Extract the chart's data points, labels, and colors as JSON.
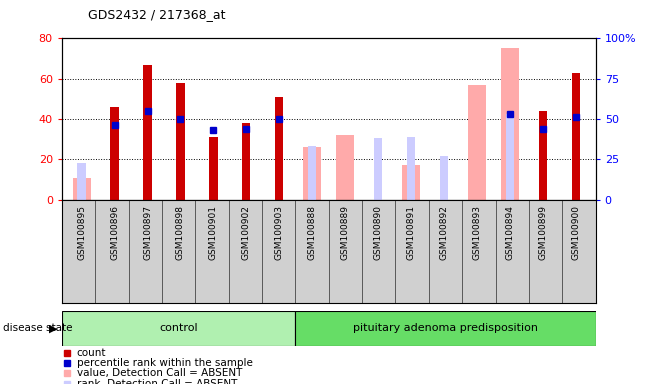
{
  "title": "GDS2432 / 217368_at",
  "samples": [
    "GSM100895",
    "GSM100896",
    "GSM100897",
    "GSM100898",
    "GSM100901",
    "GSM100902",
    "GSM100903",
    "GSM100888",
    "GSM100889",
    "GSM100890",
    "GSM100891",
    "GSM100892",
    "GSM100893",
    "GSM100894",
    "GSM100899",
    "GSM100900"
  ],
  "n_control": 7,
  "count": [
    null,
    46,
    67,
    58,
    31,
    38,
    51,
    null,
    null,
    null,
    null,
    null,
    null,
    null,
    44,
    63
  ],
  "percentile_rank": [
    null,
    46,
    55,
    50,
    43,
    44,
    50,
    null,
    null,
    null,
    null,
    null,
    null,
    53,
    44,
    51
  ],
  "value_absent": [
    11,
    null,
    null,
    null,
    null,
    null,
    null,
    26,
    32,
    null,
    17,
    null,
    57,
    75,
    null,
    null
  ],
  "rank_absent": [
    23,
    null,
    null,
    null,
    null,
    null,
    null,
    33,
    null,
    38,
    39,
    27,
    null,
    53,
    null,
    null
  ],
  "ylim_left": [
    0,
    80
  ],
  "ylim_right": [
    0,
    100
  ],
  "yticks_left": [
    0,
    20,
    40,
    60,
    80
  ],
  "yticks_right": [
    0,
    25,
    50,
    75,
    100
  ],
  "ytick_labels_left": [
    "0",
    "20",
    "40",
    "60",
    "80"
  ],
  "ytick_labels_right": [
    "0",
    "25",
    "50",
    "75",
    "100%"
  ],
  "bar_color_count": "#cc0000",
  "bar_color_value_absent": "#ffaaaa",
  "bar_color_rank_absent": "#ccccff",
  "bar_color_percentile": "#0000cc",
  "label_bg": "#d0d0d0",
  "group_color_control": "#b0f0b0",
  "group_color_pitu": "#66dd66",
  "legend_entries": [
    "count",
    "percentile rank within the sample",
    "value, Detection Call = ABSENT",
    "rank, Detection Call = ABSENT"
  ]
}
